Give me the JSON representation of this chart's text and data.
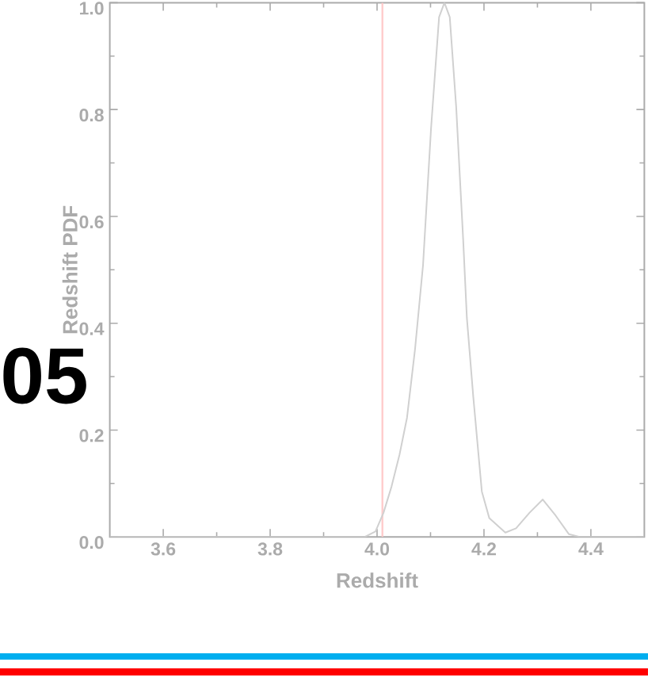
{
  "chart_data": {
    "type": "line",
    "xlabel": "Redshift",
    "ylabel": "Redshift PDF",
    "color": "#d0d0d0",
    "x": [
      3.5,
      3.977,
      3.997,
      4.012,
      4.027,
      4.042,
      4.056,
      4.071,
      4.086,
      4.101,
      4.116,
      4.126,
      4.136,
      4.148,
      4.161,
      4.168,
      4.18,
      4.196,
      4.21,
      4.24,
      4.26,
      4.285,
      4.31,
      4.334,
      4.359,
      4.379,
      4.5
    ],
    "values": [
      0,
      0,
      0.01,
      0.045,
      0.094,
      0.154,
      0.223,
      0.351,
      0.509,
      0.765,
      0.973,
      1.0,
      0.973,
      0.805,
      0.558,
      0.41,
      0.262,
      0.085,
      0.035,
      0.008,
      0.016,
      0.045,
      0.07,
      0.04,
      0.005,
      0,
      0
    ],
    "xlim": [
      3.5,
      4.5
    ],
    "ylim": [
      0,
      1.0
    ],
    "xticks": [
      3.6,
      3.8,
      {
        "value": 4,
        "label": "4.0"
      },
      4.2,
      4.4
    ],
    "yticks": [
      {
        "value": 0,
        "label": "0.0"
      },
      0.2,
      0.4,
      0.6,
      0.8,
      {
        "value": 1,
        "label": "1.0"
      }
    ],
    "ref_lines": [
      {
        "axis": "x",
        "value": 4.01,
        "color": "#ffcccc"
      }
    ],
    "annotations": [
      "05"
    ]
  }
}
